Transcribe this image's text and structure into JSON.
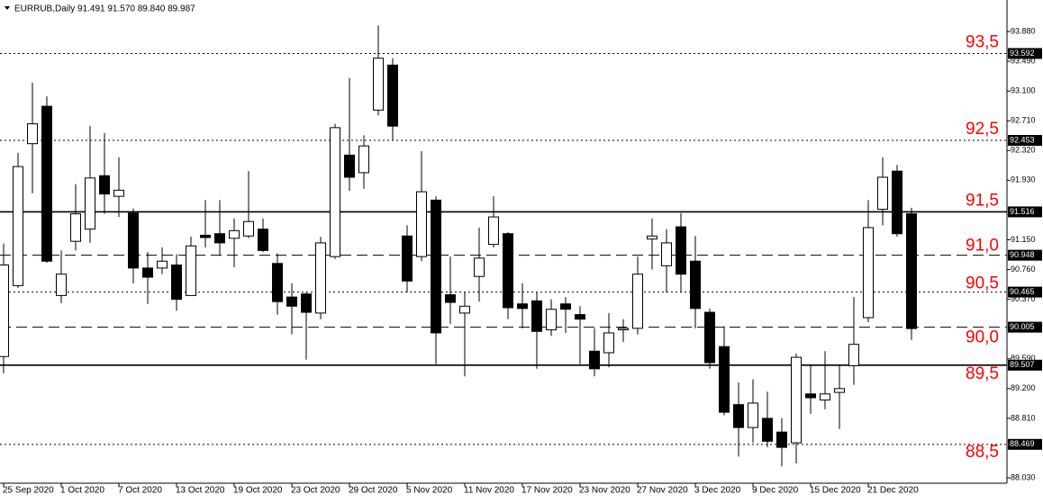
{
  "chart_data": {
    "type": "candlestick",
    "title": "EURRUB,Daily  91.491 91.570 89.840 89.987",
    "categories": [
      "25 Sep 2020",
      null,
      null,
      null,
      "1 Oct 2020",
      null,
      null,
      null,
      "7 Oct 2020",
      null,
      null,
      null,
      "13 Oct 2020",
      null,
      null,
      null,
      "19 Oct 2020",
      null,
      null,
      null,
      "23 Oct 2020",
      null,
      null,
      null,
      "29 Oct 2020",
      null,
      null,
      null,
      "5 Nov 2020",
      null,
      null,
      null,
      "11 Nov 2020",
      null,
      null,
      null,
      "17 Nov 2020",
      null,
      null,
      null,
      "23 Nov 2020",
      null,
      null,
      null,
      "27 Nov 2020",
      null,
      null,
      null,
      "3 Dec 2020",
      null,
      null,
      null,
      "9 Dec 2020",
      null,
      null,
      null,
      "15 Dec 2020",
      null,
      null,
      null,
      "21 Dec 2020",
      null,
      null,
      null
    ],
    "open": [
      89.62,
      90.55,
      92.41,
      92.9,
      90.42,
      91.13,
      91.29,
      91.99,
      91.72,
      91.5,
      90.78,
      90.78,
      90.82,
      90.42,
      91.21,
      91.23,
      91.17,
      91.2,
      91.29,
      90.84,
      90.4,
      90.44,
      90.19,
      90.93,
      92.26,
      92.03,
      92.85,
      93.44,
      91.2,
      90.93,
      91.67,
      90.43,
      90.19,
      90.67,
      91.09,
      91.23,
      90.31,
      90.35,
      89.97,
      90.31,
      90.17,
      89.69,
      89.67,
      89.97,
      89.99,
      91.16,
      90.81,
      91.32,
      90.87,
      90.2,
      89.75,
      88.99,
      88.69,
      88.81,
      88.63,
      88.49,
      89.13,
      89.05,
      89.15,
      89.5,
      90.13,
      91.55,
      92.05,
      91.491
    ],
    "high": [
      91.1,
      92.29,
      93.21,
      93.03,
      91.01,
      91.88,
      92.64,
      92.55,
      92.23,
      91.56,
      90.99,
      91.05,
      90.96,
      91.19,
      91.67,
      91.67,
      91.43,
      92.05,
      91.43,
      90.97,
      90.58,
      90.46,
      91.19,
      92.67,
      93.27,
      92.52,
      93.96,
      93.53,
      91.34,
      92.31,
      91.72,
      90.93,
      90.46,
      91.31,
      91.72,
      91.25,
      90.58,
      90.46,
      90.37,
      90.4,
      90.28,
      89.99,
      90.19,
      90.11,
      90.93,
      91.43,
      91.29,
      91.5,
      91.2,
      90.25,
      90.02,
      89.28,
      89.32,
      89.16,
      88.81,
      89.66,
      89.52,
      89.69,
      89.52,
      90.4,
      91.67,
      92.23,
      92.13,
      91.57
    ],
    "low": [
      89.4,
      90.52,
      91.76,
      90.85,
      90.32,
      91.01,
      91.11,
      91.49,
      91.45,
      90.58,
      90.31,
      90.7,
      90.22,
      90.42,
      91.05,
      90.94,
      90.79,
      91.17,
      90.99,
      90.17,
      89.91,
      89.58,
      90.11,
      90.9,
      91.79,
      91.82,
      92.78,
      92.46,
      90.46,
      90.87,
      89.52,
      90.05,
      89.36,
      90.34,
      91.05,
      90.11,
      89.99,
      89.46,
      89.89,
      89.93,
      89.52,
      89.36,
      89.48,
      89.81,
      89.91,
      90.76,
      90.46,
      90.46,
      89.99,
      89.46,
      88.85,
      88.31,
      88.49,
      88.43,
      88.18,
      88.22,
      88.87,
      88.93,
      88.67,
      89.25,
      90.07,
      91.34,
      91.19,
      89.84
    ],
    "close": [
      90.82,
      92.11,
      92.67,
      90.87,
      90.7,
      91.49,
      91.96,
      91.75,
      91.8,
      90.78,
      90.66,
      90.87,
      90.37,
      91.07,
      91.18,
      91.11,
      91.27,
      91.39,
      91.01,
      90.34,
      90.28,
      90.2,
      91.11,
      92.62,
      91.97,
      92.38,
      93.53,
      92.64,
      90.61,
      91.78,
      89.93,
      90.33,
      90.28,
      90.91,
      91.45,
      90.26,
      90.25,
      89.95,
      90.24,
      90.24,
      90.11,
      89.46,
      89.93,
      89.99,
      90.7,
      91.2,
      91.11,
      90.7,
      90.25,
      89.54,
      88.89,
      88.69,
      89.01,
      88.51,
      88.43,
      89.61,
      89.08,
      89.13,
      89.2,
      89.78,
      91.31,
      91.97,
      91.23,
      89.987
    ],
    "up_color": "#ffffff",
    "down_color": "#000000",
    "ylim": [
      87.96,
      94.293
    ],
    "yticks": [
      {
        "value": 93.88,
        "label": "93.880"
      },
      {
        "value": 93.49,
        "label": "93.490"
      },
      {
        "value": 93.1,
        "label": "93.100"
      },
      {
        "value": 92.71,
        "label": "92.710"
      },
      {
        "value": 92.32,
        "label": "92.320"
      },
      {
        "value": 91.93,
        "label": "91.930"
      },
      {
        "value": 91.15,
        "label": "91.150"
      },
      {
        "value": 90.76,
        "label": "90.760"
      },
      {
        "value": 90.37,
        "label": "90.370"
      },
      {
        "value": 89.59,
        "label": "89.590"
      },
      {
        "value": 89.2,
        "label": "89.200"
      },
      {
        "value": 88.81,
        "label": "88.810"
      },
      {
        "value": 88.03,
        "label": "88.030"
      }
    ],
    "levels": [
      {
        "value": 93.592,
        "label": "93,5",
        "style": "dotted"
      },
      {
        "value": 92.453,
        "label": "92,5",
        "style": "dotted"
      },
      {
        "value": 91.516,
        "label": "91,5",
        "style": "solid"
      },
      {
        "value": 90.948,
        "label": "91,0",
        "style": "dashed"
      },
      {
        "value": 90.465,
        "label": "90,5",
        "style": "dotted"
      },
      {
        "value": 90.005,
        "label": "90,0",
        "style": "dashed"
      },
      {
        "value": 89.507,
        "label": "89,5",
        "style": "solid"
      },
      {
        "value": 88.469,
        "label": "88,5",
        "style": "dotted"
      }
    ],
    "level_label_color": "#ff0000"
  }
}
